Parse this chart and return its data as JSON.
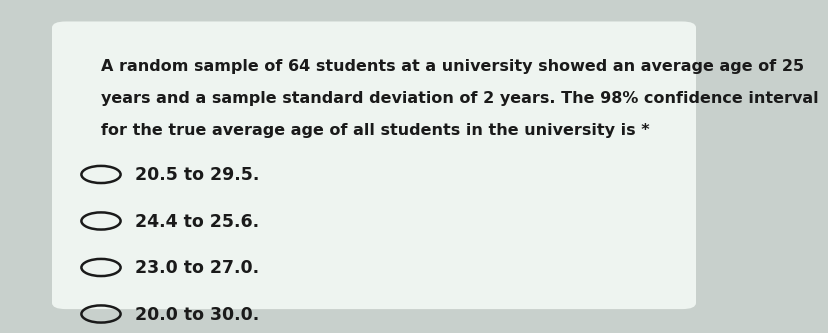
{
  "question_text_lines": [
    "A random sample of 64 students at a university showed an average age of 25",
    "years and a sample standard deviation of 2 years. The 98% confidence interval",
    "for the true average age of all students in the university is *"
  ],
  "options": [
    "20.5 to 29.5.",
    "24.4 to 25.6.",
    "23.0 to 27.0.",
    "20.0 to 30.0."
  ],
  "bg_color": "#c8d0cc",
  "card_color": "#eef4f0",
  "text_color": "#1a1a1a",
  "question_fontsize": 11.5,
  "option_fontsize": 12.5
}
